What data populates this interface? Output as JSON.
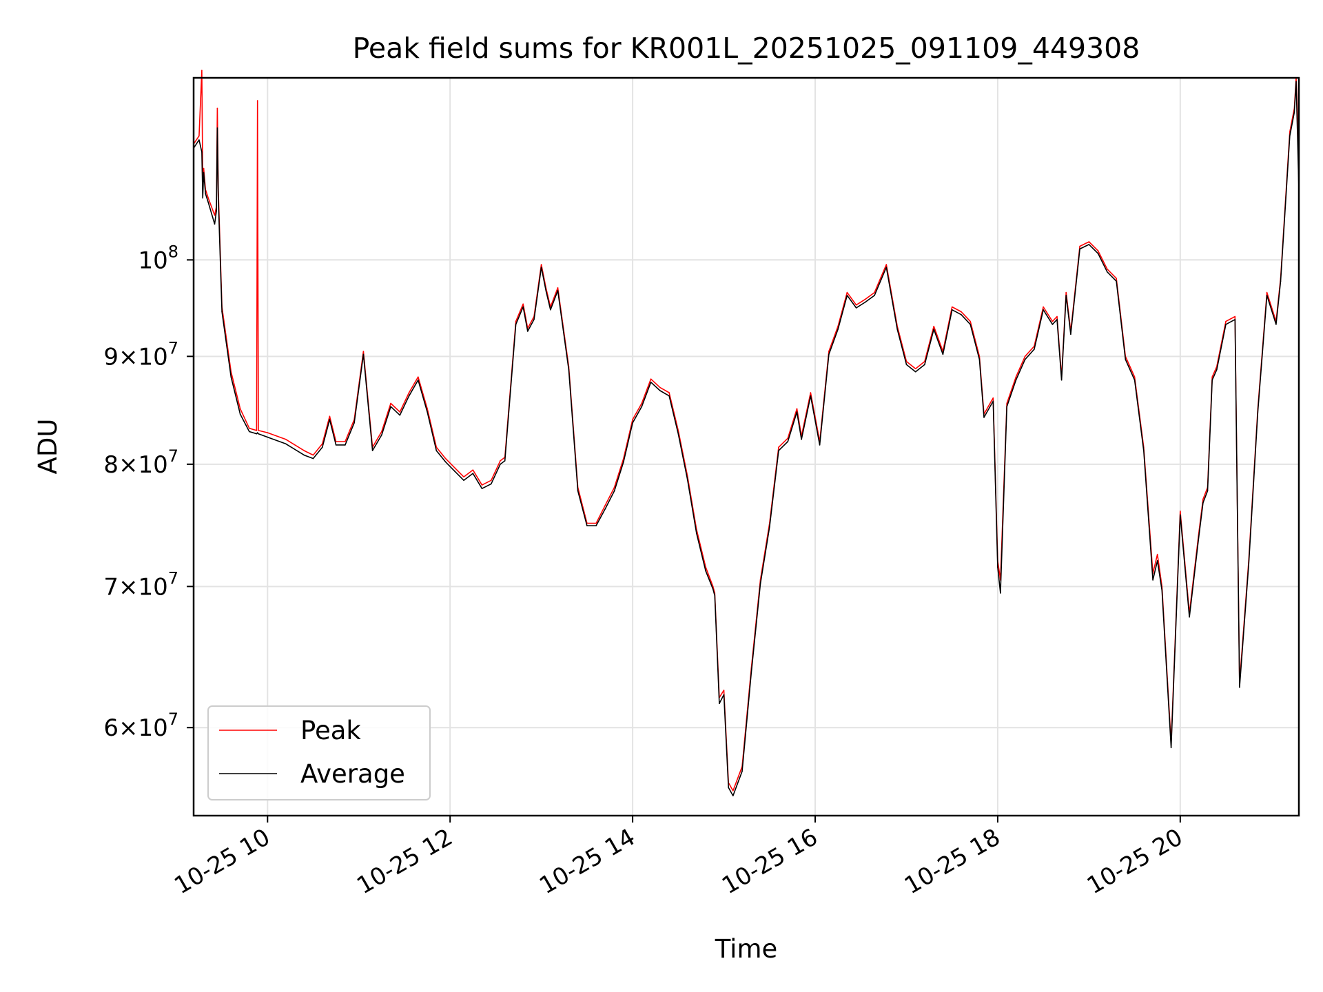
{
  "chart_data": {
    "type": "line",
    "title": "Peak field sums for KR001L_20251025_091109_449308",
    "xlabel": "Time",
    "ylabel": "ADU",
    "yscale": "log",
    "xlim_hours": [
      9.19,
      21.3
    ],
    "ylim": [
      54500000,
      122000000
    ],
    "grid": true,
    "legend_position": "lower-left",
    "x_ticks": [
      {
        "hour": 10,
        "label": "10-25 10"
      },
      {
        "hour": 12,
        "label": "10-25 12"
      },
      {
        "hour": 14,
        "label": "10-25 14"
      },
      {
        "hour": 16,
        "label": "10-25 16"
      },
      {
        "hour": 18,
        "label": "10-25 18"
      },
      {
        "hour": 20,
        "label": "10-25 20"
      }
    ],
    "y_ticks": [
      {
        "value": 60000000,
        "mant": "6",
        "exp": "7",
        "times": true
      },
      {
        "value": 70000000,
        "mant": "7",
        "exp": "7",
        "times": true
      },
      {
        "value": 80000000,
        "mant": "8",
        "exp": "7",
        "times": true
      },
      {
        "value": 90000000,
        "mant": "9",
        "exp": "7",
        "times": true
      },
      {
        "value": 100000000,
        "mant": "10",
        "exp": "8",
        "times": false
      }
    ],
    "series": [
      {
        "name": "Peak",
        "color": "#ff0000",
        "hours": [
          9.19,
          9.25,
          9.28,
          9.29,
          9.3,
          9.32,
          9.35,
          9.42,
          9.44,
          9.45,
          9.46,
          9.5,
          9.6,
          9.7,
          9.8,
          9.88,
          9.89,
          9.9,
          10.0,
          10.2,
          10.4,
          10.5,
          10.6,
          10.68,
          10.75,
          10.85,
          10.95,
          11.05,
          11.15,
          11.25,
          11.35,
          11.45,
          11.55,
          11.65,
          11.75,
          11.85,
          11.95,
          12.05,
          12.15,
          12.25,
          12.35,
          12.45,
          12.55,
          12.6,
          12.72,
          12.8,
          12.85,
          12.92,
          13.0,
          13.05,
          13.1,
          13.18,
          13.3,
          13.4,
          13.5,
          13.6,
          13.7,
          13.8,
          13.9,
          14.0,
          14.1,
          14.2,
          14.3,
          14.4,
          14.5,
          14.6,
          14.7,
          14.8,
          14.88,
          14.9,
          14.95,
          15.0,
          15.05,
          15.1,
          15.2,
          15.3,
          15.4,
          15.5,
          15.6,
          15.7,
          15.8,
          15.85,
          15.95,
          16.05,
          16.15,
          16.25,
          16.35,
          16.45,
          16.55,
          16.65,
          16.78,
          16.9,
          17.0,
          17.1,
          17.2,
          17.3,
          17.4,
          17.5,
          17.6,
          17.7,
          17.8,
          17.85,
          17.95,
          18.0,
          18.03,
          18.1,
          18.2,
          18.3,
          18.4,
          18.5,
          18.6,
          18.65,
          18.7,
          18.75,
          18.8,
          18.9,
          19.0,
          19.1,
          19.2,
          19.3,
          19.4,
          19.5,
          19.6,
          19.7,
          19.75,
          19.8,
          19.9,
          20.0,
          20.1,
          20.2,
          20.25,
          20.3,
          20.35,
          20.4,
          20.5,
          20.6,
          20.65,
          20.75,
          20.85,
          20.95,
          21.05,
          21.1,
          21.2,
          21.25,
          21.27,
          21.3
        ],
        "values": [
          113500000,
          114500000,
          123000000,
          109000000,
          110500000,
          108000000,
          107000000,
          105000000,
          106000000,
          118000000,
          108000000,
          95000000,
          88500000,
          85000000,
          83200000,
          83000000,
          119000000,
          83000000,
          82800000,
          82200000,
          81200000,
          80800000,
          81800000,
          84300000,
          82000000,
          82000000,
          84000000,
          90500000,
          81500000,
          82900000,
          85500000,
          84700000,
          86500000,
          88000000,
          85000000,
          81500000,
          80500000,
          79700000,
          78900000,
          79500000,
          78200000,
          78600000,
          80300000,
          80600000,
          93500000,
          95300000,
          92800000,
          94000000,
          99500000,
          97000000,
          95000000,
          97000000,
          89000000,
          78000000,
          75000000,
          75000000,
          76500000,
          78000000,
          80500000,
          84000000,
          85500000,
          87800000,
          87000000,
          86500000,
          83000000,
          79000000,
          74500000,
          71500000,
          70000000,
          69500000,
          62000000,
          62500000,
          56500000,
          56000000,
          57500000,
          64000000,
          70500000,
          75000000,
          81500000,
          82300000,
          85000000,
          82500000,
          86500000,
          82000000,
          90500000,
          93000000,
          96500000,
          95200000,
          95800000,
          96500000,
          99500000,
          93000000,
          89500000,
          88800000,
          89500000,
          93000000,
          90500000,
          95000000,
          94500000,
          93500000,
          90000000,
          84500000,
          86000000,
          72000000,
          70500000,
          85500000,
          88000000,
          90000000,
          91000000,
          95000000,
          93500000,
          94000000,
          88000000,
          96500000,
          92500000,
          101500000,
          102000000,
          101000000,
          99000000,
          98000000,
          90000000,
          88000000,
          81500000,
          71000000,
          72500000,
          70000000,
          59000000,
          76000000,
          68000000,
          74000000,
          77000000,
          78000000,
          88000000,
          89000000,
          93500000,
          94000000,
          63000000,
          72000000,
          85000000,
          96500000,
          93500000,
          98000000,
          115000000,
          118000000,
          122000000,
          112000000
        ]
      },
      {
        "name": "Average",
        "color": "#000000",
        "hours": [
          9.19,
          9.25,
          9.28,
          9.29,
          9.3,
          9.32,
          9.35,
          9.42,
          9.44,
          9.45,
          9.46,
          9.5,
          9.6,
          9.7,
          9.8,
          9.88,
          9.89,
          9.9,
          10.0,
          10.2,
          10.4,
          10.5,
          10.6,
          10.68,
          10.75,
          10.85,
          10.95,
          11.05,
          11.15,
          11.25,
          11.35,
          11.45,
          11.55,
          11.65,
          11.75,
          11.85,
          11.95,
          12.05,
          12.15,
          12.25,
          12.35,
          12.45,
          12.55,
          12.6,
          12.72,
          12.8,
          12.85,
          12.92,
          13.0,
          13.05,
          13.1,
          13.18,
          13.3,
          13.4,
          13.5,
          13.6,
          13.7,
          13.8,
          13.9,
          14.0,
          14.1,
          14.2,
          14.3,
          14.4,
          14.5,
          14.6,
          14.7,
          14.8,
          14.88,
          14.9,
          14.95,
          15.0,
          15.05,
          15.1,
          15.2,
          15.3,
          15.4,
          15.5,
          15.6,
          15.7,
          15.8,
          15.85,
          15.95,
          16.05,
          16.15,
          16.25,
          16.35,
          16.45,
          16.55,
          16.65,
          16.78,
          16.9,
          17.0,
          17.1,
          17.2,
          17.3,
          17.4,
          17.5,
          17.6,
          17.7,
          17.8,
          17.85,
          17.95,
          18.0,
          18.03,
          18.1,
          18.2,
          18.3,
          18.4,
          18.5,
          18.6,
          18.65,
          18.7,
          18.75,
          18.8,
          18.9,
          19.0,
          19.1,
          19.2,
          19.3,
          19.4,
          19.5,
          19.6,
          19.7,
          19.75,
          19.8,
          19.9,
          20.0,
          20.1,
          20.2,
          20.25,
          20.3,
          20.35,
          20.4,
          20.5,
          20.6,
          20.65,
          20.75,
          20.85,
          20.95,
          21.05,
          21.1,
          21.2,
          21.25,
          21.27,
          21.3
        ],
        "values": [
          113000000,
          114000000,
          112500000,
          107000000,
          110000000,
          107500000,
          106500000,
          104000000,
          105500000,
          115500000,
          107000000,
          94500000,
          88000000,
          84500000,
          82900000,
          82700000,
          82800000,
          82700000,
          82400000,
          81800000,
          80800000,
          80500000,
          81500000,
          84000000,
          81700000,
          81700000,
          83700000,
          90200000,
          81200000,
          82600000,
          85200000,
          84400000,
          86200000,
          87700000,
          84700000,
          81200000,
          80200000,
          79400000,
          78600000,
          79200000,
          77900000,
          78300000,
          80000000,
          80300000,
          93200000,
          95000000,
          92500000,
          93700000,
          99200000,
          96700000,
          94700000,
          96700000,
          88700000,
          77700000,
          74800000,
          74800000,
          76200000,
          77700000,
          80200000,
          83700000,
          85200000,
          87500000,
          86700000,
          86200000,
          82700000,
          78700000,
          74200000,
          71200000,
          69800000,
          69300000,
          61600000,
          62200000,
          56200000,
          55700000,
          57200000,
          63700000,
          70200000,
          74700000,
          81200000,
          82000000,
          84700000,
          82200000,
          86200000,
          81700000,
          90200000,
          92700000,
          96200000,
          94900000,
          95500000,
          96200000,
          99200000,
          92700000,
          89200000,
          88500000,
          89200000,
          92700000,
          90200000,
          94700000,
          94200000,
          93200000,
          89700000,
          84200000,
          85700000,
          71500000,
          69500000,
          85200000,
          87700000,
          89700000,
          90700000,
          94700000,
          93200000,
          93700000,
          87700000,
          96200000,
          92200000,
          101200000,
          101700000,
          100700000,
          98700000,
          97700000,
          89700000,
          87700000,
          81200000,
          70500000,
          72000000,
          69700000,
          58700000,
          75700000,
          67700000,
          73700000,
          76700000,
          77700000,
          87700000,
          88700000,
          93200000,
          93700000,
          62700000,
          71700000,
          84700000,
          96200000,
          93200000,
          97700000,
          114500000,
          117500000,
          121500000,
          108000000
        ]
      }
    ]
  }
}
